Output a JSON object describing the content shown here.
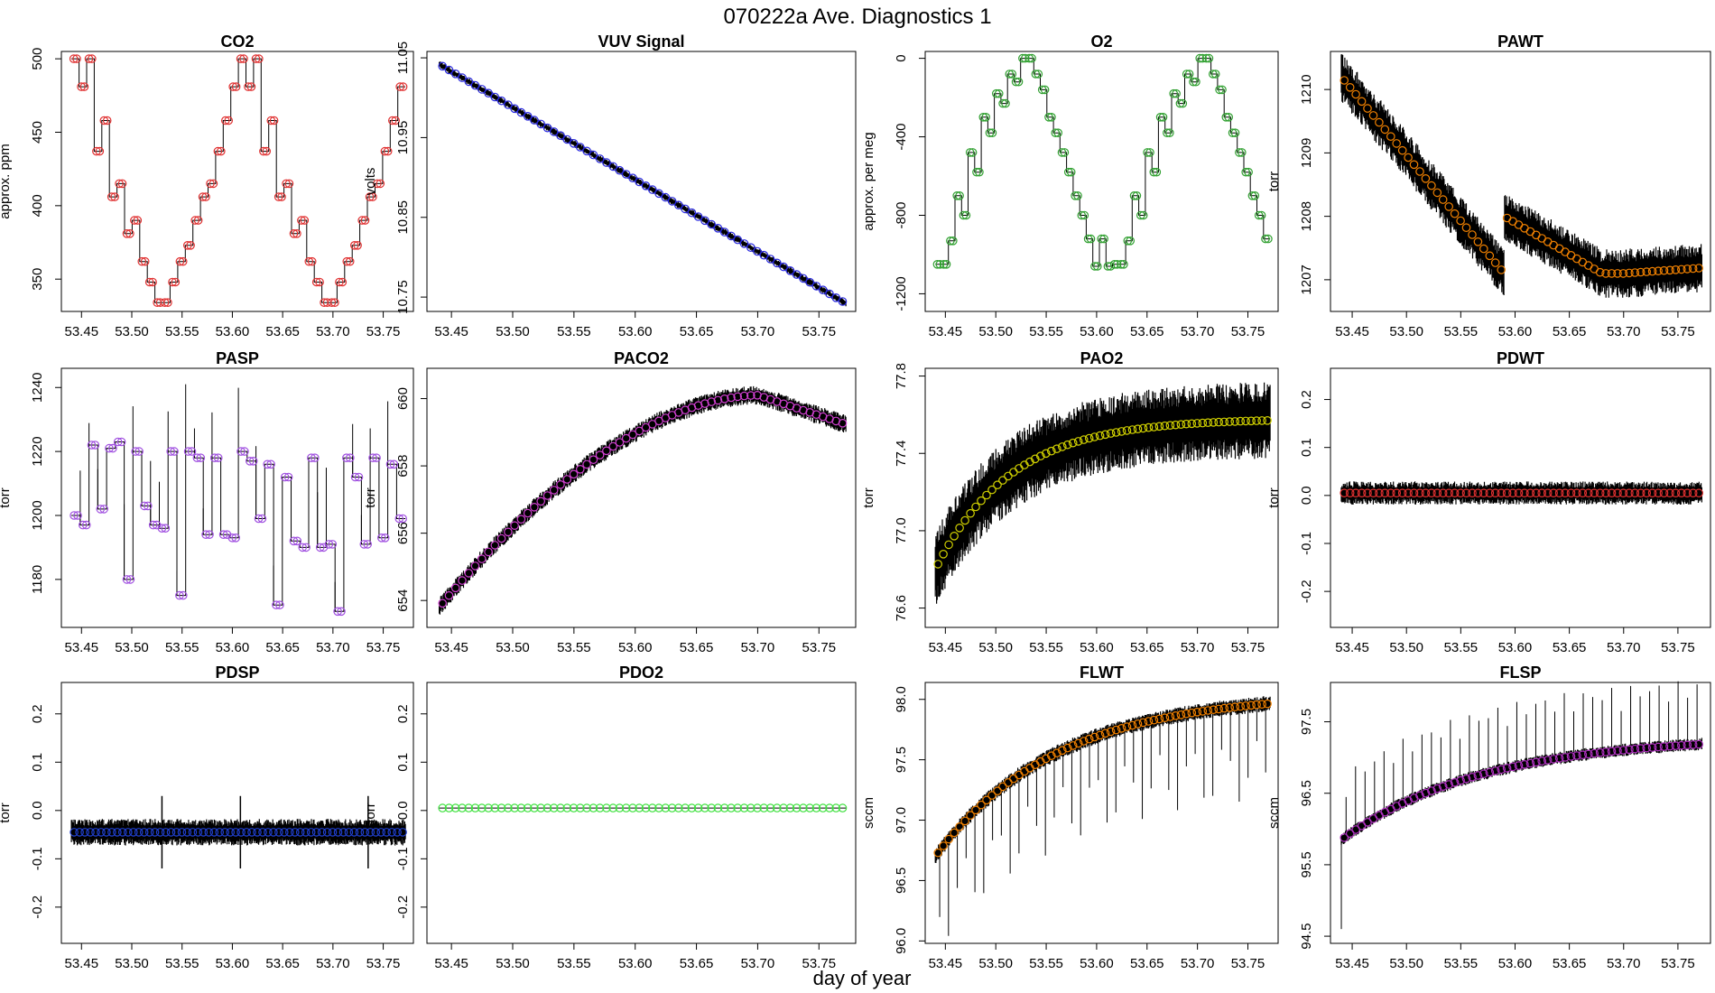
{
  "figure": {
    "title": "070222a   Ave. Diagnostics 1",
    "xlabel": "day of year"
  },
  "chart_data": [
    {
      "type": "line",
      "title": "CO2",
      "ylabel": "approx. ppm",
      "xlim": [
        53.43,
        53.78
      ],
      "ylim": [
        328,
        505
      ],
      "yticks": [
        350,
        400,
        450,
        500
      ],
      "xticks": [
        53.45,
        53.5,
        53.55,
        53.6,
        53.65,
        53.7,
        53.75
      ],
      "marker_color": "#e03030",
      "pattern": "co2",
      "x_start": 53.44,
      "x_end": 53.772
    },
    {
      "type": "line",
      "title": "VUV Signal",
      "ylabel": "volts",
      "xlim": [
        53.43,
        53.78
      ],
      "ylim": [
        10.732,
        11.058
      ],
      "yticks": [
        10.75,
        10.85,
        10.95,
        11.05
      ],
      "xticks": [
        53.45,
        53.5,
        53.55,
        53.6,
        53.65,
        53.7,
        53.75
      ],
      "marker_color": "#2a2ae0",
      "pattern": "vuv",
      "x_start": 53.44,
      "x_end": 53.772
    },
    {
      "type": "line",
      "title": "O2",
      "ylabel": "approx. per meg",
      "xlim": [
        53.43,
        53.78
      ],
      "ylim": [
        -1290,
        35
      ],
      "yticks": [
        -1200,
        -800,
        -400,
        0
      ],
      "xticks": [
        53.45,
        53.5,
        53.55,
        53.6,
        53.65,
        53.7,
        53.75
      ],
      "marker_color": "#30a030",
      "pattern": "o2",
      "x_start": 53.44,
      "x_end": 53.772
    },
    {
      "type": "line",
      "title": "PAWT",
      "ylabel": "torr",
      "xlim": [
        53.43,
        53.78
      ],
      "ylim": [
        1206.5,
        1210.6
      ],
      "yticks": [
        1207,
        1208,
        1209,
        1210
      ],
      "xticks": [
        53.45,
        53.5,
        53.55,
        53.6,
        53.65,
        53.7,
        53.75
      ],
      "marker_color": "#f08000",
      "pattern": "pawt",
      "x_start": 53.44,
      "x_end": 53.772
    },
    {
      "type": "line",
      "title": "PASP",
      "ylabel": "torr",
      "xlim": [
        53.43,
        53.78
      ],
      "ylim": [
        1165,
        1246
      ],
      "yticks": [
        1180,
        1200,
        1220,
        1240
      ],
      "xticks": [
        53.45,
        53.5,
        53.55,
        53.6,
        53.65,
        53.7,
        53.75
      ],
      "marker_color": "#a050e0",
      "pattern": "pasp",
      "x_start": 53.44,
      "x_end": 53.772
    },
    {
      "type": "line",
      "title": "PACO2",
      "ylabel": "torr",
      "xlim": [
        53.43,
        53.78
      ],
      "ylim": [
        653.2,
        660.9
      ],
      "yticks": [
        654,
        656,
        658,
        660
      ],
      "xticks": [
        53.45,
        53.5,
        53.55,
        53.6,
        53.65,
        53.7,
        53.75
      ],
      "marker_color": "#d040d0",
      "pattern": "paco2",
      "x_start": 53.44,
      "x_end": 53.772
    },
    {
      "type": "line",
      "title": "PAO2",
      "ylabel": "torr",
      "xlim": [
        53.43,
        53.78
      ],
      "ylim": [
        76.5,
        77.84
      ],
      "yticks": [
        76.6,
        77.0,
        77.4,
        77.8
      ],
      "xticks": [
        53.45,
        53.5,
        53.55,
        53.6,
        53.65,
        53.7,
        53.75
      ],
      "marker_color": "#d0d000",
      "pattern": "pao2",
      "x_start": 53.44,
      "x_end": 53.772
    },
    {
      "type": "line",
      "title": "PDWT",
      "ylabel": "torr",
      "xlim": [
        53.43,
        53.78
      ],
      "ylim": [
        -0.275,
        0.265
      ],
      "yticks": [
        -0.2,
        -0.1,
        0.0,
        0.1,
        0.2
      ],
      "xticks": [
        53.45,
        53.5,
        53.55,
        53.6,
        53.65,
        53.7,
        53.75
      ],
      "marker_color": "#e03030",
      "pattern": "pdwt",
      "x_start": 53.44,
      "x_end": 53.772
    },
    {
      "type": "line",
      "title": "PDSP",
      "ylabel": "torr",
      "xlim": [
        53.43,
        53.78
      ],
      "ylim": [
        -0.275,
        0.265
      ],
      "yticks": [
        -0.2,
        -0.1,
        0.0,
        0.1,
        0.2
      ],
      "xticks": [
        53.45,
        53.5,
        53.55,
        53.6,
        53.65,
        53.7,
        53.75
      ],
      "marker_color": "#2040d0",
      "pattern": "pdsp",
      "x_start": 53.44,
      "x_end": 53.772
    },
    {
      "type": "line",
      "title": "PDO2",
      "ylabel": "torr",
      "xlim": [
        53.43,
        53.78
      ],
      "ylim": [
        -0.275,
        0.265
      ],
      "yticks": [
        -0.2,
        -0.1,
        0.0,
        0.1,
        0.2
      ],
      "xticks": [
        53.45,
        53.5,
        53.55,
        53.6,
        53.65,
        53.7,
        53.75
      ],
      "marker_color": "#40e040",
      "pattern": "pdo2",
      "x_start": 53.44,
      "x_end": 53.772
    },
    {
      "type": "line",
      "title": "FLWT",
      "ylabel": "sccm",
      "xlim": [
        53.43,
        53.78
      ],
      "ylim": [
        95.98,
        98.14
      ],
      "yticks": [
        96.0,
        96.5,
        97.0,
        97.5,
        98.0
      ],
      "xticks": [
        53.45,
        53.5,
        53.55,
        53.6,
        53.65,
        53.7,
        53.75
      ],
      "marker_color": "#f08000",
      "pattern": "flwt",
      "x_start": 53.44,
      "x_end": 53.772
    },
    {
      "type": "line",
      "title": "FLSP",
      "ylabel": "sccm",
      "xlim": [
        53.43,
        53.78
      ],
      "ylim": [
        94.4,
        98.05
      ],
      "yticks": [
        94.5,
        95.5,
        96.5,
        97.5
      ],
      "xticks": [
        53.45,
        53.5,
        53.55,
        53.6,
        53.65,
        53.7,
        53.75
      ],
      "marker_color": "#b030c0",
      "pattern": "flsp",
      "x_start": 53.44,
      "x_end": 53.772
    }
  ]
}
